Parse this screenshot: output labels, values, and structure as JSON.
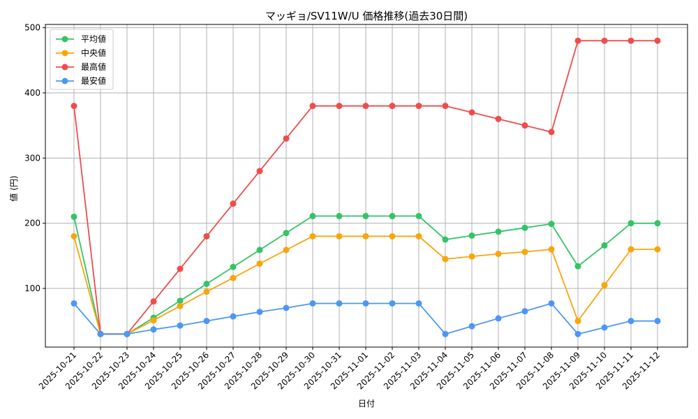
{
  "chart_data": {
    "type": "line",
    "title": "マッギョ/SV11W/U 価格推移(過去30日間)",
    "xlabel": "日付",
    "ylabel": "値 (円)",
    "ylim": [
      10,
      505
    ],
    "yticks": [
      100,
      200,
      300,
      400,
      500
    ],
    "grid": true,
    "legend_position": "top-left",
    "categories": [
      "2025-10-21",
      "2025-10-22",
      "2025-10-23",
      "2025-10-24",
      "2025-10-25",
      "2025-10-26",
      "2025-10-27",
      "2025-10-28",
      "2025-10-29",
      "2025-10-30",
      "2025-10-31",
      "2025-11-01",
      "2025-11-02",
      "2025-11-03",
      "2025-11-04",
      "2025-11-05",
      "2025-11-06",
      "2025-11-07",
      "2025-11-08",
      "2025-11-09",
      "2025-11-10",
      "2025-11-11",
      "2025-11-12"
    ],
    "series": [
      {
        "name": "平均値",
        "color": "#33c466",
        "values": [
          210,
          30,
          30,
          55,
          81,
          107,
          133,
          159,
          185,
          211,
          211,
          211,
          211,
          211,
          175,
          181,
          187,
          193,
          199,
          134,
          166,
          200,
          200
        ]
      },
      {
        "name": "中央値",
        "color": "#f9a50b",
        "values": [
          180,
          30,
          30,
          51,
          73,
          95,
          116,
          138,
          159,
          180,
          180,
          180,
          180,
          180,
          145,
          149,
          153,
          156,
          160,
          50,
          105,
          160,
          160
        ]
      },
      {
        "name": "最高値",
        "color": "#ef4c4c",
        "values": [
          380,
          30,
          30,
          80,
          130,
          180,
          230,
          280,
          330,
          380,
          380,
          380,
          380,
          380,
          380,
          370,
          360,
          350,
          340,
          480,
          480,
          480,
          480
        ]
      },
      {
        "name": "最安値",
        "color": "#4c97f4",
        "values": [
          77,
          30,
          30,
          37,
          43,
          50,
          57,
          64,
          70,
          77,
          77,
          77,
          77,
          77,
          30,
          42,
          54,
          65,
          77,
          30,
          40,
          50,
          50
        ]
      }
    ]
  }
}
